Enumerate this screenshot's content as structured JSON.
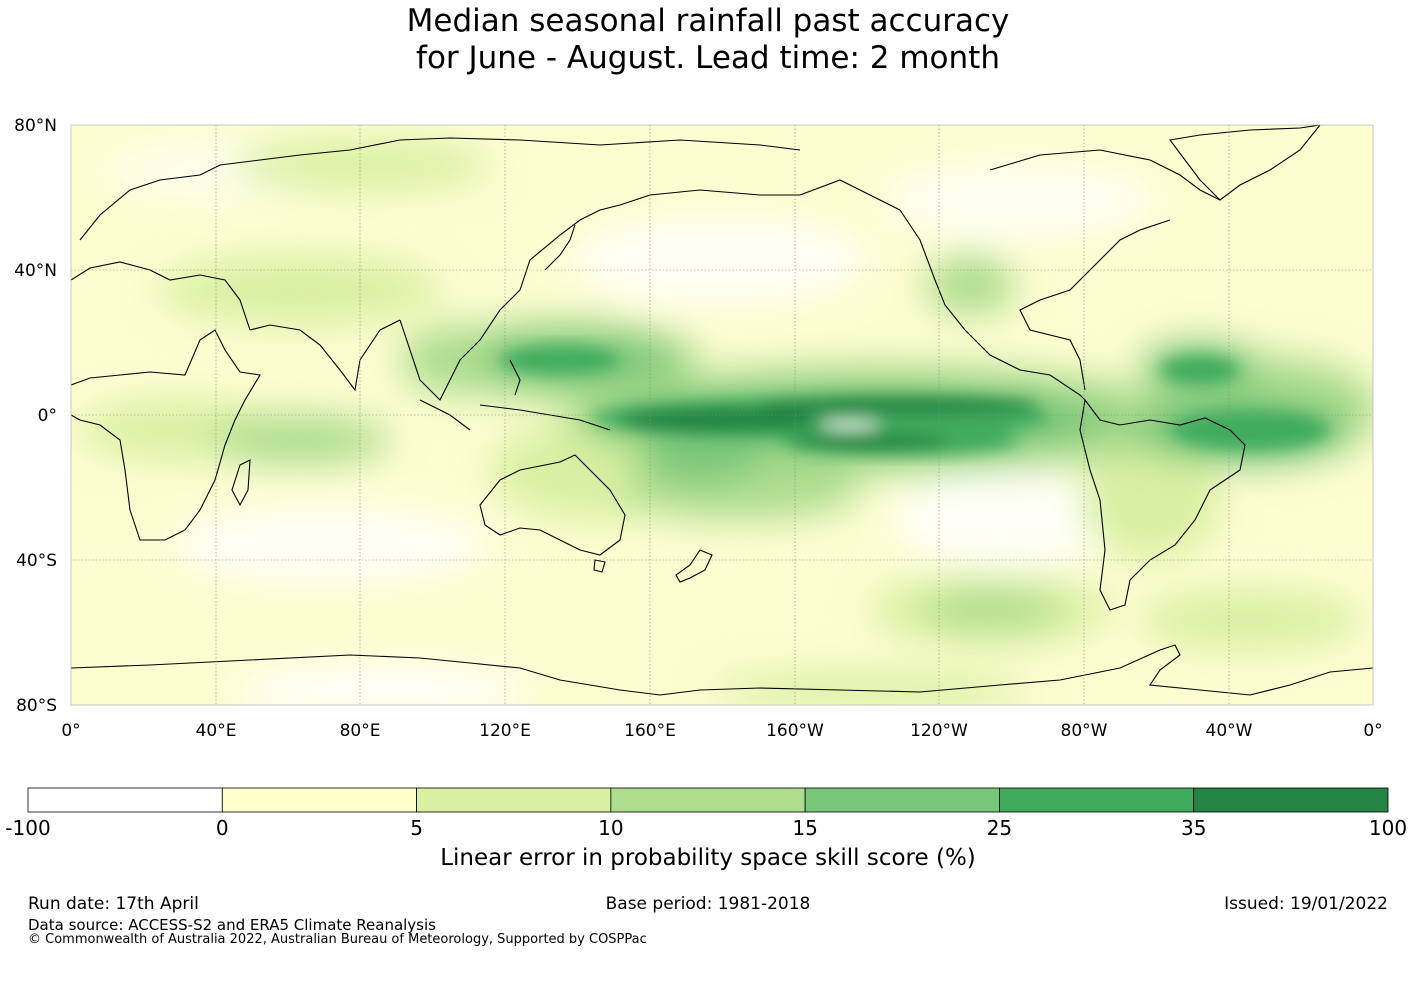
{
  "title_line1": "Median seasonal rainfall past accuracy",
  "title_line2": "for June - August. Lead time: 2 month",
  "map": {
    "lat_labels": [
      "80°N",
      "40°N",
      "0°",
      "40°S",
      "80°S"
    ],
    "lon_labels": [
      "0°",
      "40°E",
      "80°E",
      "120°E",
      "160°E",
      "160°W",
      "120°W",
      "80°W",
      "40°W",
      "0°"
    ],
    "lat_range": [
      -80,
      80
    ],
    "lon_range": [
      0,
      360
    ],
    "grid": true
  },
  "colorbar": {
    "tick_labels": [
      "-100",
      "0",
      "5",
      "10",
      "15",
      "25",
      "35",
      "100"
    ],
    "colors": [
      "#ffffff",
      "#ffffcc",
      "#d9f0a3",
      "#addd8e",
      "#78c679",
      "#41ab5d",
      "#238443"
    ],
    "caption": "Linear error in probability space skill score (%)"
  },
  "footer": {
    "run_date": "Run date: 17th April",
    "base_period": "Base period: 1981-2018",
    "issued": "Issued: 19/01/2022",
    "data_source": "Data source: ACCESS-S2 and ERA5 Climate Reanalysis",
    "copyright": "© Commonwealth of Australia 2022, Australian Bureau of Meteorology, Supported by COSPPac"
  }
}
